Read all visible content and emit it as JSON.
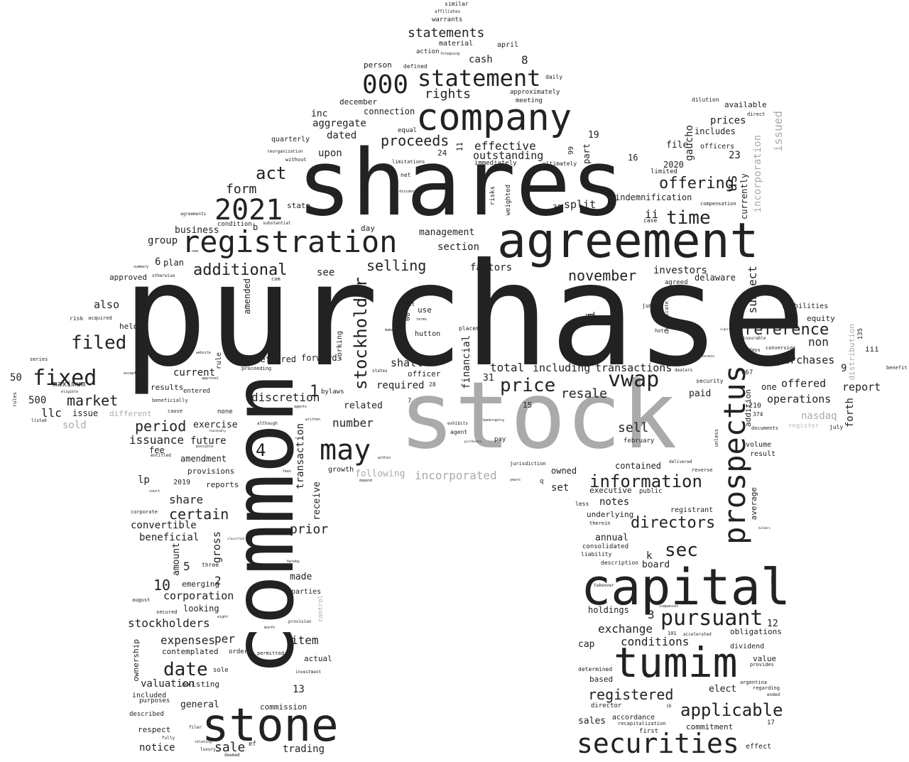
{
  "words": {
    "purchase": "purchase",
    "shares": "shares",
    "stock": "stock",
    "common": "common",
    "agreement": "agreement",
    "company": "company",
    "registration": "registration",
    "capital": "capital",
    "tumim": "tumim",
    "stone": "stone",
    "securities": "securities",
    "prospectus": "prospectus",
    "statement": "statement",
    "n000": "000",
    "n2021": "2021",
    "may": "may",
    "fixed": "fixed",
    "filed": "filed",
    "price": "price",
    "vwap": "vwap",
    "information": "information",
    "pursuant": "pursuant",
    "date": "date",
    "applicable": "applicable",
    "sec": "sec",
    "reference": "reference",
    "stockholder": "stockholder",
    "directors": "directors",
    "time": "time",
    "offering": "offering",
    "additional": "additional",
    "act": "act",
    "statements": "statements",
    "proceeds": "proceeds",
    "rights": "rights",
    "november": "november",
    "selling": "selling",
    "certain": "certain",
    "period": "period",
    "market": "market",
    "registered": "registered",
    "exchange": "exchange",
    "conditions": "conditions",
    "stockholders": "stockholders",
    "sale": "sale",
    "trading": "trading",
    "notice": "notice",
    "item": "item",
    "expenses": "expenses",
    "valuation": "valuation",
    "corporation": "corporation",
    "convertible": "convertible",
    "share": "share",
    "prior": "prior",
    "number": "number",
    "issuance": "issuance",
    "sell": "sell",
    "resale": "resale",
    "including": "including",
    "transactions": "transactions",
    "total": "total",
    "effective": "effective",
    "outstanding": "outstanding",
    "aggregate": "aggregate",
    "dated": "dated",
    "upon": "upon",
    "connection": "connection",
    "cash": "cash",
    "form": "form",
    "business": "business",
    "management": "management",
    "section": "section",
    "factors": "factors",
    "split": "split",
    "indemnification": "indemnification",
    "investors": "investors",
    "delaware": "delaware",
    "subject": "subject",
    "non": "non",
    "purchases": "purchases",
    "offered": "offered",
    "report": "report",
    "operations": "operations",
    "nasdaq": "nasdaq",
    "forth": "forth",
    "us": "us",
    "prices": "prices",
    "includes": "includes",
    "officers": "officers",
    "available": "available",
    "issued": "issued",
    "incorporation": "incorporation",
    "currently": "currently",
    "gaucho": "gaucho",
    "file": "file",
    "n2020": "2020",
    "also": "also",
    "held": "held",
    "approved": "approved",
    "group": "group",
    "plan": "plan",
    "see": "see",
    "amended": "amended",
    "preferred": "preferred",
    "forward": "forward",
    "shall": "shall",
    "required": "required",
    "related": "related",
    "discretion": "discretion",
    "current": "current",
    "results": "results",
    "maximum": "maximum",
    "llc": "llc",
    "sold": "sold",
    "issue": "issue",
    "different": "different",
    "exercise": "exercise",
    "future": "future",
    "amendment": "amendment",
    "provisions": "provisions",
    "reports": "reports",
    "fee": "fee",
    "lp": "lp",
    "beneficial": "beneficial",
    "gross": "gross",
    "amount": "amount",
    "emerging": "emerging",
    "looking": "looking",
    "contemplated": "contemplated",
    "per": "per",
    "existing": "existing",
    "general": "general",
    "commission": "commission",
    "respect": "respect",
    "described": "described",
    "included": "included",
    "purposes": "purposes",
    "ownership": "ownership",
    "actual": "actual",
    "made": "made",
    "parties": "parties",
    "transaction": "transaction",
    "receive": "receive",
    "following": "following",
    "incorporated": "incorporated",
    "financial": "financial",
    "growth": "growth",
    "owned": "owned",
    "set": "set",
    "contained": "contained",
    "executive": "executive",
    "notes": "notes",
    "underlying": "underlying",
    "annual": "annual",
    "consolidated": "consolidated",
    "board": "board",
    "holdings": "holdings",
    "cap": "cap",
    "based": "based",
    "sales": "sales",
    "accordance": "accordance",
    "commitment": "commitment",
    "elect": "elect",
    "dividend": "dividend",
    "obligations": "obligations",
    "value": "value",
    "effect": "effect",
    "paid": "paid",
    "average": "average",
    "addition": "addition",
    "one": "one",
    "liabilities": "liabilities",
    "equity": "equity",
    "result": "result",
    "volume": "volume",
    "february": "february",
    "registrant": "registrant",
    "public": "public",
    "limited": "limited",
    "agreed": "agreed",
    "hutton": "hutton",
    "use": "use",
    "terms": "terms",
    "officer": "officer",
    "working": "working",
    "inc": "inc",
    "quarterly": "quarterly",
    "december": "december",
    "person": "person",
    "action": "action",
    "material": "material",
    "april": "april",
    "warrants": "warrants",
    "affiliates": "affiliates",
    "similar": "similar",
    "defined": "defined",
    "state": "state",
    "condition": "condition",
    "day": "day",
    "equal": "equal",
    "net": "net",
    "immediately": "immediately",
    "approximately": "approximately",
    "meeting": "meeting",
    "risks": "risks",
    "weighted": "weighted",
    "part": "part",
    "placement": "placement",
    "bylaws": "bylaws",
    "rule": "rule",
    "entered": "entered",
    "none": "none",
    "ultimately": "ultimately",
    "daily": "daily",
    "dilution": "dilution",
    "direct": "direct",
    "compensation": "compensation",
    "case": "case",
    "security": "security",
    "register": "register",
    "distribution": "distribution",
    "july": "july",
    "benefit": "benefit",
    "iii": "iii",
    "voting": "voting",
    "conversion": "conversion",
    "documents": "documents",
    "days": "days",
    "hotel": "hotel",
    "june": "june",
    "certificate": "certificate",
    "description": "description",
    "liability": "liability",
    "director": "director",
    "determined": "determined",
    "first": "first",
    "recapitalization": "recapitalization",
    "regarding": "regarding",
    "argentina": "argentina",
    "provides": "provides",
    "ended": "ended",
    "takeover": "takeover",
    "accelerated": "accelerated",
    "companies": "companies",
    "reverse": "reverse",
    "delivered": "delivered",
    "unless": "unless",
    "control": "control",
    "provision": "provision",
    "permitted": "permitted",
    "order": "order",
    "sole": "sole",
    "secured": "secured",
    "august": "august",
    "three": "three",
    "corporate": "corporate",
    "court": "court",
    "possible": "possible",
    "entitled": "entitled",
    "cause": "cause",
    "beneficially": "beneficially",
    "rules": "rules",
    "listed": "listed",
    "series": "series",
    "eligible": "eligible",
    "except": "except",
    "website": "website",
    "approval": "approval",
    "proceeding": "proceeding",
    "acquired": "acquired",
    "risk": "risk",
    "summary": "summary",
    "otherwise": "otherwise",
    "agreements": "agreements",
    "new": "new",
    "substantial": "substantial",
    "without": "without",
    "reorganization": "reorganization",
    "limitations": "limitations",
    "dividends": "dividends",
    "foregoing": "foregoing",
    "exhibits": "exhibits",
    "agent": "agent",
    "pay": "pay",
    "jurisdiction": "jurisdiction",
    "q": "q",
    "years": "years",
    "depend": "depend",
    "within": "within",
    "make": "make",
    "states": "states",
    "right": "right",
    "written": "written",
    "although": "although",
    "received": "received",
    "agents": "agents",
    "fees": "fees",
    "lowest": "lowest",
    "filer": "filer",
    "fully": "fully",
    "luxury": "luxury",
    "deemed": "deemed",
    "relating": "relating",
    "hereby": "hereby",
    "month": "month",
    "less": "less",
    "therein": "therein",
    "eight": "eight",
    "ii": "ii",
    "n1": "1",
    "n4": "4",
    "n6": "6",
    "n10": "10",
    "n2": "2",
    "n5": "5",
    "n13": "13",
    "n3": "3",
    "n3i": "3i",
    "n8": "8",
    "n19": "19",
    "n16": "16",
    "n23": "23",
    "n24": "24",
    "n11": "11",
    "n99": "99",
    "n30": "30",
    "n9": "9",
    "n12": "12",
    "n15": "15",
    "n31": "31",
    "n28": "28",
    "n7": "7",
    "n00": "00",
    "n50": "50",
    "n500": "500",
    "n2019": "2019",
    "n17": "17",
    "n135": "135",
    "n14": "14",
    "n210": "210",
    "n374": "374",
    "n067": "067",
    "n081": "081",
    "n101": "101",
    "n18": "18",
    "k": "k",
    "b": "b",
    "ef": "ef",
    "com": "com",
    "dealers": "dealers",
    "significant": "significant",
    "bankruptcy": "bankruptcy",
    "insurable": "insurable",
    "excess": "excess",
    "holders": "holders",
    "purchasers": "purchasers",
    "investment": "investment",
    "reasonably": "reasonably",
    "classified": "classified"
  },
  "palette": {
    "primary_text": "#222222",
    "secondary_text": "#aaaaaa",
    "background": "#ffffff"
  }
}
